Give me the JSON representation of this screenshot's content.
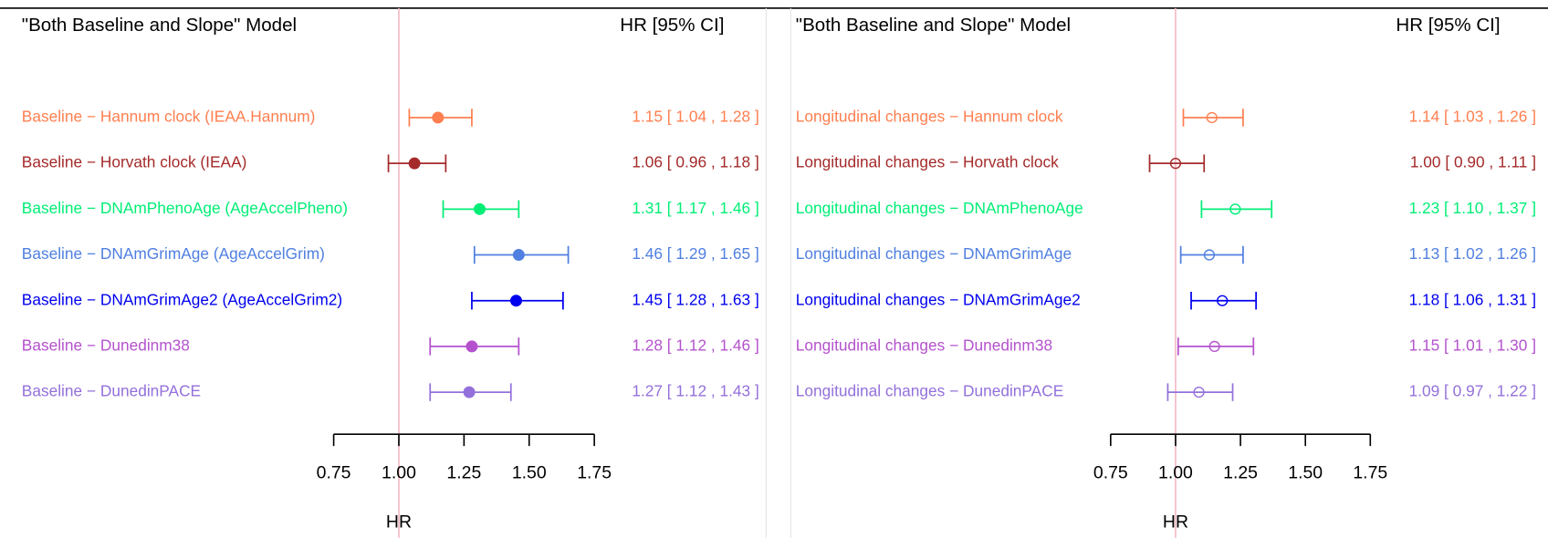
{
  "chart_data": [
    {
      "type": "forest",
      "title": "\"Both Baseline and Slope\" Model",
      "ci_header": "HR [95% CI]",
      "xlabel": "HR",
      "marker": "filled",
      "categories": [
        "Baseline − Hannum clock (IEAA.Hannum)",
        "Baseline − Horvath clock (IEAA)",
        "Baseline − DNAmPhenoAge (AgeAccelPheno)",
        "Baseline − DNAmGrimAge (AgeAccelGrim)",
        "Baseline − DNAmGrimAge2 (AgeAccelGrim2)",
        "Baseline − Dunedinm38",
        "Baseline − DunedinPACE"
      ],
      "colors": [
        "#ff7f50",
        "#a52a2a",
        "#00ee76",
        "#4f7fe0",
        "#0000ee",
        "#b452cd",
        "#9370db"
      ],
      "values": [
        1.15,
        1.06,
        1.31,
        1.46,
        1.45,
        1.28,
        1.27
      ],
      "lower": [
        1.04,
        0.96,
        1.17,
        1.29,
        1.28,
        1.12,
        1.12
      ],
      "upper": [
        1.28,
        1.18,
        1.46,
        1.65,
        1.63,
        1.46,
        1.43
      ],
      "value_labels": [
        "1.15 [ 1.04 , 1.28 ]",
        "1.06 [ 0.96 , 1.18 ]",
        "1.31 [ 1.17 , 1.46 ]",
        "1.46 [ 1.29 , 1.65 ]",
        "1.45 [ 1.28 , 1.63 ]",
        "1.28 [ 1.12 , 1.46 ]",
        "1.27 [ 1.12 , 1.43 ]"
      ],
      "xlim": [
        0.75,
        1.75
      ],
      "xticks": [
        0.75,
        {
          "value": 1,
          "label": "1.00"
        },
        1.25,
        {
          "value": 1.5,
          "label": "1.50"
        },
        1.75
      ],
      "ref_line": 1
    },
    {
      "type": "forest",
      "title": "\"Both Baseline and Slope\" Model",
      "ci_header": "HR [95% CI]",
      "xlabel": "HR",
      "marker": "open",
      "categories": [
        "Longitudinal changes − Hannum clock",
        "Longitudinal changes − Horvath clock",
        "Longitudinal changes − DNAmPhenoAge",
        "Longitudinal changes − DNAmGrimAge",
        "Longitudinal changes − DNAmGrimAge2",
        "Longitudinal changes − Dunedinm38",
        "Longitudinal changes − DunedinPACE"
      ],
      "colors": [
        "#ff7f50",
        "#a52a2a",
        "#00ee76",
        "#4f7fe0",
        "#0000ee",
        "#b452cd",
        "#9370db"
      ],
      "values": [
        1.14,
        1.0,
        1.23,
        1.13,
        1.18,
        1.15,
        1.09
      ],
      "lower": [
        1.03,
        0.9,
        1.1,
        1.02,
        1.06,
        1.01,
        0.97
      ],
      "upper": [
        1.26,
        1.11,
        1.37,
        1.26,
        1.31,
        1.3,
        1.22
      ],
      "value_labels": [
        "1.14 [ 1.03 , 1.26 ]",
        "1.00 [ 0.90 , 1.11 ]",
        "1.23 [ 1.10 , 1.37 ]",
        "1.13 [ 1.02 , 1.26 ]",
        "1.18 [ 1.06 , 1.31 ]",
        "1.15 [ 1.01 , 1.30 ]",
        "1.09 [ 0.97 , 1.22 ]"
      ],
      "xlim": [
        0.75,
        1.75
      ],
      "xticks": [
        0.75,
        {
          "value": 1,
          "label": "1.00"
        },
        1.25,
        {
          "value": 1.5,
          "label": "1.50"
        },
        1.75
      ],
      "ref_line": 1
    }
  ]
}
